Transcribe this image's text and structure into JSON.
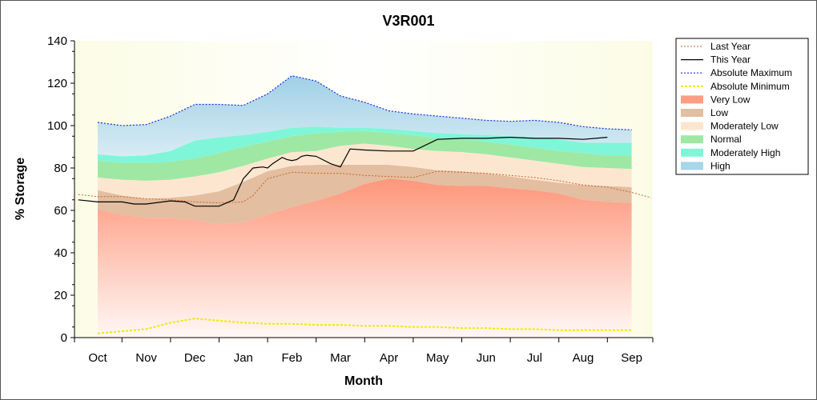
{
  "chart_data": {
    "type": "area",
    "title": "V3R001",
    "xlabel": "Month",
    "ylabel": "% Storage",
    "ylim": [
      0,
      140
    ],
    "yticks": [
      0,
      20,
      40,
      60,
      80,
      100,
      120,
      140
    ],
    "categories": [
      "Oct",
      "Nov",
      "Dec",
      "Jan",
      "Feb",
      "Mar",
      "Apr",
      "May",
      "Jun",
      "Jul",
      "Aug",
      "Sep"
    ],
    "grid": false,
    "legend_position": "right",
    "legend": [
      "Last Year",
      "This Year",
      "Absolute Maximum",
      "Absolute Minimum",
      "Very Low",
      "Low",
      "Moderately Low",
      "Normal",
      "Moderately High",
      "High"
    ],
    "x": [
      0,
      0.5,
      1,
      1.5,
      2,
      2.5,
      3,
      3.5,
      4,
      4.5,
      5,
      5.5,
      6,
      6.5,
      7,
      7.5,
      8,
      8.5,
      9,
      9.5,
      10,
      10.5,
      11
    ],
    "bands": {
      "very_low_top": [
        60.5,
        58,
        56.5,
        56.5,
        55.5,
        53.5,
        54.5,
        58,
        61.5,
        64.5,
        68,
        72.5,
        75,
        74,
        72,
        71.5,
        71.5,
        70.5,
        69.5,
        68,
        65,
        64,
        63.5
      ],
      "low_top": [
        69.5,
        67,
        65.5,
        66,
        67,
        69,
        73.5,
        78.5,
        81,
        81.5,
        81.5,
        81.5,
        81.5,
        80.5,
        79,
        78.5,
        77.5,
        76,
        74.5,
        73,
        72,
        71.5,
        71
      ],
      "moderately_low_top": [
        75.5,
        74.5,
        74,
        74.5,
        76,
        78,
        81,
        84.5,
        87.5,
        88,
        90.5,
        91.5,
        90.5,
        89,
        88,
        87.5,
        86.5,
        85,
        83.5,
        82,
        80.5,
        80,
        79.5
      ],
      "normal_top": [
        83.5,
        82.5,
        82.5,
        83,
        84.5,
        87,
        90,
        92.5,
        95,
        96.5,
        97,
        97.5,
        96.5,
        95.5,
        94,
        93.5,
        92.5,
        91,
        89.5,
        88,
        87,
        86,
        86
      ],
      "moderately_high_top": [
        86.5,
        85.5,
        86,
        88,
        93,
        94.5,
        95.5,
        97,
        99,
        99.5,
        99,
        99,
        98.5,
        97.5,
        96.5,
        96,
        95.5,
        95,
        94.5,
        93.5,
        92,
        92,
        92
      ],
      "high_top": [
        101.5,
        100,
        100.5,
        104.5,
        110,
        110,
        109.5,
        115,
        123.5,
        121,
        114,
        111,
        107,
        105.5,
        104.5,
        103.5,
        102.5,
        102,
        102.5,
        101.5,
        99.5,
        98.5,
        98
      ]
    },
    "series": [
      {
        "name": "Last Year",
        "x": [
          -0.4,
          0,
          0.5,
          1,
          1.5,
          2,
          2.5,
          3,
          3.2,
          3.5,
          4,
          4.5,
          5,
          5.5,
          6,
          6.5,
          7,
          7.5,
          8,
          8.5,
          9,
          9.5,
          10,
          10.5,
          11,
          11.4
        ],
        "values": [
          67.5,
          66.5,
          66.5,
          65.5,
          65,
          64,
          63.5,
          64,
          67,
          75,
          78,
          77.5,
          77.5,
          76.5,
          76,
          75.5,
          78.5,
          78,
          77.5,
          76.5,
          75.5,
          74,
          72,
          71,
          68.5,
          66
        ]
      },
      {
        "name": "This Year",
        "x": [
          -0.4,
          0,
          0.5,
          0.75,
          1,
          1.5,
          1.8,
          2,
          2.5,
          2.8,
          3,
          3.2,
          3.4,
          3.5,
          3.6,
          3.8,
          3.9,
          4,
          4.1,
          4.2,
          4.3,
          4.5,
          4.8,
          5,
          5.2,
          5.5,
          6,
          6.5,
          7,
          7.5,
          8,
          8.5,
          9,
          9.5,
          10,
          10.5
        ],
        "values": [
          65,
          64,
          64,
          63,
          63,
          64.5,
          64,
          62,
          62,
          65,
          75,
          80,
          80.5,
          80,
          82,
          85,
          84,
          83.5,
          84,
          85.5,
          86,
          85.5,
          82,
          80.5,
          89,
          88.5,
          88,
          88,
          93.5,
          94,
          94,
          94.5,
          94,
          94,
          93.5,
          94.5
        ]
      },
      {
        "name": "Absolute Maximum",
        "x": [
          0,
          0.5,
          1,
          1.5,
          2,
          2.5,
          3,
          3.5,
          4,
          4.5,
          5,
          5.5,
          6,
          6.5,
          7,
          7.5,
          8,
          8.5,
          9,
          9.5,
          10,
          10.5,
          11
        ],
        "values": [
          101.5,
          100,
          100.5,
          104.5,
          110,
          110,
          109.5,
          115,
          123.5,
          121,
          114,
          111,
          107,
          105.5,
          104.5,
          103.5,
          102.5,
          102,
          102.5,
          101.5,
          99.5,
          98.5,
          98
        ]
      },
      {
        "name": "Absolute Minimum",
        "x": [
          0,
          0.5,
          1,
          1.5,
          2,
          2.5,
          3,
          3.5,
          4,
          4.5,
          5,
          5.5,
          6,
          6.5,
          7,
          7.5,
          8,
          8.5,
          9,
          9.5,
          10,
          10.5,
          11
        ],
        "values": [
          2,
          3,
          4,
          7,
          9,
          8,
          7,
          6.5,
          6.5,
          6,
          6,
          5.5,
          5.5,
          5,
          5,
          4.5,
          4.5,
          4,
          4,
          3.5,
          3.5,
          3.5,
          3.5
        ]
      }
    ],
    "colors": {
      "background_outer": "#fbfbe0",
      "last_year": "#c8642a",
      "this_year": "#000000",
      "absolute_maximum": "#1f2bd8",
      "absolute_minimum": "#f2ea00",
      "very_low": "#fd9e84",
      "low": "#e3bea0",
      "moderately_low": "#fde6d0",
      "normal": "#9ee8a4",
      "moderately_high": "#7ff6d8",
      "high": "#a8d6ea"
    }
  }
}
